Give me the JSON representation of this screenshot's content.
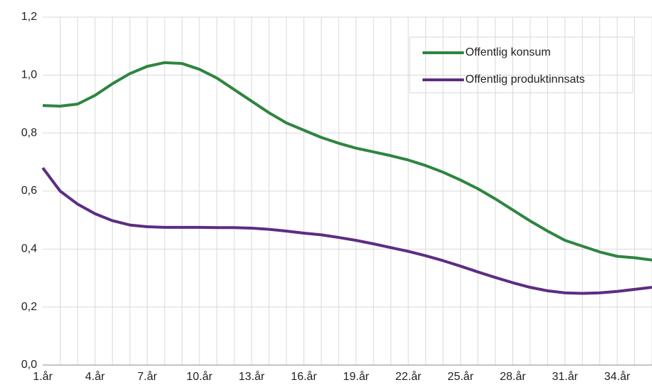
{
  "chart_data": {
    "type": "line",
    "categories": [
      "1.år",
      null,
      null,
      "4.år",
      null,
      null,
      "7.år",
      null,
      null,
      "10.år",
      null,
      null,
      "13.år",
      null,
      null,
      "16.år",
      null,
      null,
      "19.år",
      null,
      null,
      "22.år",
      null,
      null,
      "25.år",
      null,
      null,
      "28.år",
      null,
      null,
      "31.år",
      null,
      null,
      "34.år",
      null,
      null
    ],
    "series": [
      {
        "name": "Offentlig konsum",
        "color": "#2e8540",
        "values": [
          0.895,
          0.893,
          0.9,
          0.93,
          0.97,
          1.005,
          1.03,
          1.043,
          1.04,
          1.02,
          0.99,
          0.95,
          0.91,
          0.87,
          0.835,
          0.81,
          0.785,
          0.765,
          0.748,
          0.735,
          0.722,
          0.707,
          0.688,
          0.665,
          0.638,
          0.608,
          0.573,
          0.535,
          0.497,
          0.462,
          0.43,
          0.41,
          0.39,
          0.375,
          0.37,
          0.362
        ]
      },
      {
        "name": "Offentlig produktinnsats",
        "color": "#5c2d83",
        "values": [
          0.68,
          0.6,
          0.555,
          0.522,
          0.498,
          0.483,
          0.477,
          0.475,
          0.475,
          0.475,
          0.474,
          0.474,
          0.472,
          0.468,
          0.462,
          0.455,
          0.449,
          0.44,
          0.43,
          0.418,
          0.405,
          0.392,
          0.377,
          0.36,
          0.341,
          0.321,
          0.302,
          0.284,
          0.268,
          0.256,
          0.249,
          0.247,
          0.249,
          0.254,
          0.261,
          0.268
        ]
      }
    ],
    "ylim": [
      0,
      1.2
    ],
    "yticks": [
      {
        "value": 0,
        "label": "0,0"
      },
      {
        "value": 0.2,
        "label": "0,2"
      },
      {
        "value": 0.4,
        "label": "0,4"
      },
      {
        "value": 0.6,
        "label": "0,6"
      },
      {
        "value": 0.8,
        "label": "0,8"
      },
      {
        "value": 1,
        "label": "1,0"
      },
      {
        "value": 1.2,
        "label": "1,2"
      }
    ],
    "grid": true
  }
}
